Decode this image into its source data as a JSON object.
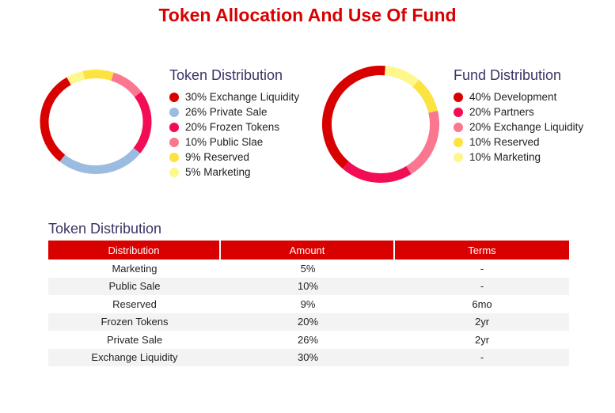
{
  "title": "Token Allocation And Use Of Fund",
  "chart_data": [
    {
      "type": "pie",
      "title": "Token Distribution",
      "hole": true,
      "slices": [
        {
          "label": "30% Exchange Liquidity",
          "value": 30,
          "color": "#d90000"
        },
        {
          "label": "26% Private Sale",
          "value": 26,
          "color": "#9bbbe0"
        },
        {
          "label": "20% Frozen Tokens",
          "value": 20,
          "color": "#f20d55"
        },
        {
          "label": "10% Public Slae",
          "value": 10,
          "color": "#fb7790"
        },
        {
          "label": "9% Reserved",
          "value": 9,
          "color": "#fce342"
        },
        {
          "label": "5% Marketing",
          "value": 5,
          "color": "#fdf78c"
        }
      ]
    },
    {
      "type": "pie",
      "title": "Fund Distribution",
      "hole": true,
      "slices": [
        {
          "label": "40% Development",
          "value": 40,
          "color": "#d90000"
        },
        {
          "label": "20% Partners",
          "value": 20,
          "color": "#f20d55"
        },
        {
          "label": "20% Exchange Liquidity",
          "value": 20,
          "color": "#fb7790"
        },
        {
          "label": "10% Reserved",
          "value": 10,
          "color": "#fce342"
        },
        {
          "label": "10% Marketing",
          "value": 10,
          "color": "#fdf78c"
        }
      ]
    }
  ],
  "table": {
    "title": "Token Distribution",
    "headers": [
      "Distribution",
      "Amount",
      "Terms"
    ],
    "rows": [
      [
        "Marketing",
        "5%",
        "-"
      ],
      [
        "Public Sale",
        "10%",
        "-"
      ],
      [
        "Reserved",
        "9%",
        "6mo"
      ],
      [
        "Frozen Tokens",
        "20%",
        "2yr"
      ],
      [
        "Private Sale",
        "26%",
        "2yr"
      ],
      [
        "Exchange Liquidity",
        "30%",
        "-"
      ]
    ]
  }
}
